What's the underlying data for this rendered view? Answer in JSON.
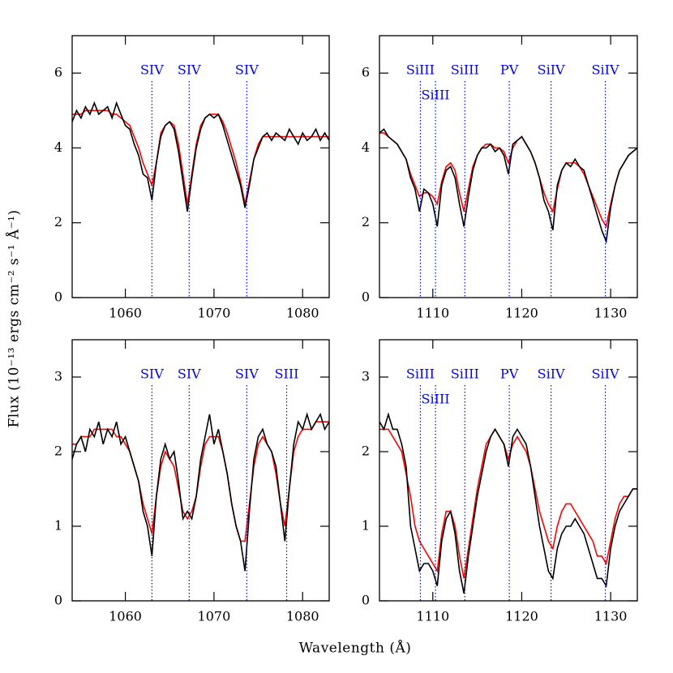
{
  "y_label": "Flux (10⁻¹³ ergs cm⁻² s⁻¹ Å⁻¹)",
  "x_label": "Wavelength (Å)",
  "chart_data": [
    {
      "type": "line",
      "x": [
        1054,
        1054.5,
        1055,
        1055.5,
        1056,
        1056.5,
        1057,
        1057.5,
        1058,
        1058.5,
        1059,
        1059.5,
        1060,
        1060.5,
        1061,
        1061.5,
        1062,
        1062.5,
        1063,
        1063.5,
        1064,
        1064.5,
        1065,
        1065.5,
        1066,
        1066.5,
        1067,
        1067.5,
        1068,
        1068.5,
        1069,
        1069.5,
        1070,
        1070.5,
        1071,
        1071.5,
        1072,
        1072.5,
        1073,
        1073.5,
        1074,
        1074.5,
        1075,
        1075.5,
        1076,
        1076.5,
        1077,
        1077.5,
        1078,
        1078.5,
        1079,
        1079.5,
        1080,
        1080.5,
        1081,
        1081.5,
        1082,
        1082.5,
        1083
      ],
      "xlim": [
        1054,
        1083
      ],
      "xticks": [
        1060,
        1070,
        1080
      ],
      "ylim": [
        0,
        7
      ],
      "yticks": [
        0,
        2,
        4,
        6
      ],
      "series": [
        {
          "color": "#ff0000",
          "values": [
            4.9,
            4.9,
            4.9,
            5.0,
            5.0,
            5.0,
            5.0,
            5.0,
            5.0,
            4.9,
            4.9,
            4.8,
            4.7,
            4.6,
            4.3,
            4.0,
            3.6,
            3.3,
            3.0,
            3.6,
            4.4,
            4.6,
            4.7,
            4.6,
            4.1,
            3.3,
            2.5,
            3.3,
            4.1,
            4.6,
            4.8,
            4.9,
            4.9,
            4.9,
            4.7,
            4.4,
            4.0,
            3.6,
            3.1,
            2.5,
            3.1,
            3.7,
            4.1,
            4.3,
            4.3,
            4.3,
            4.3,
            4.3,
            4.3,
            4.3,
            4.3,
            4.3,
            4.3,
            4.3,
            4.3,
            4.3,
            4.3,
            4.3,
            4.3
          ]
        },
        {
          "color": "#000000",
          "values": [
            4.7,
            5.0,
            4.8,
            5.1,
            4.9,
            5.2,
            4.9,
            5.0,
            5.1,
            4.8,
            5.2,
            4.9,
            4.6,
            4.5,
            4.1,
            3.8,
            3.3,
            3.2,
            2.6,
            3.6,
            4.3,
            4.6,
            4.7,
            4.5,
            3.9,
            3.1,
            2.3,
            3.2,
            4.0,
            4.5,
            4.8,
            4.9,
            4.8,
            4.9,
            4.6,
            4.2,
            3.8,
            3.4,
            3.0,
            2.4,
            3.0,
            3.7,
            4.0,
            4.3,
            4.4,
            4.2,
            4.4,
            4.3,
            4.2,
            4.5,
            4.3,
            4.1,
            4.4,
            4.2,
            4.3,
            4.5,
            4.2,
            4.4,
            4.2
          ]
        }
      ],
      "lines": [
        {
          "x": 1063.0,
          "label": "SIV"
        },
        {
          "x": 1067.2,
          "label": "SIV"
        },
        {
          "x": 1073.7,
          "label": "SIV"
        }
      ],
      "line_color": "#0000ff"
    },
    {
      "type": "line",
      "x": [
        1104,
        1104.5,
        1105,
        1105.5,
        1106,
        1106.5,
        1107,
        1107.5,
        1108,
        1108.5,
        1109,
        1109.5,
        1110,
        1110.5,
        1111,
        1111.5,
        1112,
        1112.5,
        1113,
        1113.5,
        1114,
        1114.5,
        1115,
        1115.5,
        1116,
        1116.5,
        1117,
        1117.5,
        1118,
        1118.5,
        1119,
        1119.5,
        1120,
        1120.5,
        1121,
        1121.5,
        1122,
        1122.5,
        1123,
        1123.5,
        1124,
        1124.5,
        1125,
        1125.5,
        1126,
        1126.5,
        1127,
        1127.5,
        1128,
        1128.5,
        1129,
        1129.5,
        1130,
        1130.5,
        1131,
        1131.5,
        1132,
        1132.5,
        1133
      ],
      "xlim": [
        1104,
        1133
      ],
      "xticks": [
        1110,
        1120,
        1130
      ],
      "ylim": [
        0,
        7
      ],
      "yticks": [
        0,
        2,
        4,
        6
      ],
      "series": [
        {
          "color": "#ff0000",
          "values": [
            4.4,
            4.4,
            4.3,
            4.2,
            4.1,
            3.9,
            3.7,
            3.3,
            3.0,
            2.7,
            2.8,
            2.8,
            2.7,
            2.5,
            3.1,
            3.5,
            3.6,
            3.4,
            2.8,
            2.3,
            2.9,
            3.5,
            3.8,
            4.0,
            4.1,
            4.1,
            4.0,
            4.0,
            3.9,
            3.6,
            4.0,
            4.2,
            4.3,
            4.1,
            3.9,
            3.6,
            3.2,
            2.8,
            2.5,
            2.3,
            2.9,
            3.4,
            3.6,
            3.6,
            3.6,
            3.5,
            3.3,
            3.0,
            2.7,
            2.4,
            2.1,
            1.9,
            2.5,
            3.0,
            3.4,
            3.6,
            3.8,
            3.9,
            4.0
          ]
        },
        {
          "color": "#000000",
          "values": [
            4.4,
            4.5,
            4.3,
            4.2,
            4.1,
            3.9,
            3.7,
            3.2,
            2.9,
            2.3,
            2.9,
            2.8,
            2.5,
            1.9,
            3.0,
            3.4,
            3.5,
            3.2,
            2.5,
            1.9,
            2.7,
            3.4,
            3.8,
            4.0,
            4.0,
            4.1,
            3.9,
            4.0,
            3.8,
            3.3,
            4.1,
            4.2,
            4.3,
            4.1,
            3.9,
            3.6,
            3.2,
            2.6,
            2.3,
            1.8,
            3.0,
            3.4,
            3.6,
            3.5,
            3.7,
            3.5,
            3.4,
            3.0,
            2.6,
            2.2,
            1.8,
            1.5,
            2.4,
            3.0,
            3.4,
            3.6,
            3.8,
            3.9,
            4.0
          ]
        }
      ],
      "lines": [
        {
          "x": 1108.6,
          "label": "SiIII"
        },
        {
          "x": 1110.3,
          "label": "SiIII"
        },
        {
          "x": 1113.6,
          "label": "SiIII"
        },
        {
          "x": 1118.6,
          "label": "PV"
        },
        {
          "x": 1123.3,
          "label": "SiIV"
        },
        {
          "x": 1129.4,
          "label": "SiIV"
        }
      ],
      "line_color": "#0000ff"
    },
    {
      "type": "line",
      "x": [
        1054,
        1054.5,
        1055,
        1055.5,
        1056,
        1056.5,
        1057,
        1057.5,
        1058,
        1058.5,
        1059,
        1059.5,
        1060,
        1060.5,
        1061,
        1061.5,
        1062,
        1062.5,
        1063,
        1063.5,
        1064,
        1064.5,
        1065,
        1065.5,
        1066,
        1066.5,
        1067,
        1067.5,
        1068,
        1068.5,
        1069,
        1069.5,
        1070,
        1070.5,
        1071,
        1071.5,
        1072,
        1072.5,
        1073,
        1073.5,
        1074,
        1074.5,
        1075,
        1075.5,
        1076,
        1076.5,
        1077,
        1077.5,
        1078,
        1078.5,
        1079,
        1079.5,
        1080,
        1080.5,
        1081,
        1081.5,
        1082,
        1082.5,
        1083
      ],
      "xlim": [
        1054,
        1083
      ],
      "xticks": [
        1060,
        1070,
        1080
      ],
      "ylim": [
        0,
        3.5
      ],
      "yticks": [
        0,
        1,
        2,
        3
      ],
      "series": [
        {
          "color": "#ff0000",
          "values": [
            2.1,
            2.1,
            2.2,
            2.2,
            2.2,
            2.3,
            2.3,
            2.3,
            2.3,
            2.3,
            2.2,
            2.2,
            2.1,
            2.0,
            1.8,
            1.6,
            1.3,
            1.1,
            0.9,
            1.4,
            1.8,
            2.0,
            1.9,
            1.8,
            1.5,
            1.2,
            1.1,
            1.2,
            1.4,
            1.8,
            2.1,
            2.2,
            2.2,
            2.2,
            2.0,
            1.7,
            1.3,
            1.0,
            0.8,
            0.8,
            1.3,
            1.8,
            2.1,
            2.2,
            2.1,
            2.0,
            1.7,
            1.3,
            1.0,
            1.5,
            2.0,
            2.2,
            2.3,
            2.3,
            2.3,
            2.4,
            2.4,
            2.4,
            2.4
          ]
        },
        {
          "color": "#000000",
          "values": [
            1.9,
            2.1,
            2.2,
            2.0,
            2.3,
            2.2,
            2.4,
            2.1,
            2.3,
            2.2,
            2.4,
            2.1,
            2.2,
            2.0,
            1.8,
            1.6,
            1.2,
            1.0,
            0.6,
            1.4,
            1.9,
            2.1,
            1.9,
            2.0,
            1.6,
            1.1,
            1.2,
            1.1,
            1.4,
            1.9,
            2.2,
            2.5,
            2.1,
            2.3,
            2.0,
            1.7,
            1.3,
            1.0,
            0.8,
            0.4,
            1.2,
            1.9,
            2.2,
            2.3,
            2.1,
            2.0,
            1.8,
            1.3,
            0.8,
            1.5,
            2.1,
            2.4,
            2.3,
            2.5,
            2.3,
            2.4,
            2.5,
            2.3,
            2.4
          ]
        }
      ],
      "lines": [
        {
          "x": 1063.0,
          "label": "SIV"
        },
        {
          "x": 1067.2,
          "label": "SIV"
        },
        {
          "x": 1073.7,
          "label": "SIV"
        },
        {
          "x": 1078.2,
          "label": "SIII"
        }
      ],
      "line_color": "#0000ff"
    },
    {
      "type": "line",
      "x": [
        1104,
        1104.5,
        1105,
        1105.5,
        1106,
        1106.5,
        1107,
        1107.5,
        1108,
        1108.5,
        1109,
        1109.5,
        1110,
        1110.5,
        1111,
        1111.5,
        1112,
        1112.5,
        1113,
        1113.5,
        1114,
        1114.5,
        1115,
        1115.5,
        1116,
        1116.5,
        1117,
        1117.5,
        1118,
        1118.5,
        1119,
        1119.5,
        1120,
        1120.5,
        1121,
        1121.5,
        1122,
        1122.5,
        1123,
        1123.5,
        1124,
        1124.5,
        1125,
        1125.5,
        1126,
        1126.5,
        1127,
        1127.5,
        1128,
        1128.5,
        1129,
        1129.5,
        1130,
        1130.5,
        1131,
        1131.5,
        1132,
        1132.5,
        1133
      ],
      "xlim": [
        1104,
        1133
      ],
      "xticks": [
        1110,
        1120,
        1130
      ],
      "ylim": [
        0,
        3.5
      ],
      "yticks": [
        0,
        1,
        2,
        3
      ],
      "series": [
        {
          "color": "#ff0000",
          "values": [
            2.3,
            2.3,
            2.3,
            2.2,
            2.1,
            2.0,
            1.7,
            1.4,
            1.0,
            0.8,
            0.7,
            0.6,
            0.5,
            0.4,
            0.9,
            1.2,
            1.2,
            1.0,
            0.6,
            0.3,
            0.7,
            1.1,
            1.5,
            1.8,
            2.1,
            2.2,
            2.3,
            2.2,
            2.1,
            1.9,
            2.1,
            2.2,
            2.1,
            2.0,
            1.8,
            1.5,
            1.2,
            1.0,
            0.8,
            0.7,
            1.0,
            1.2,
            1.3,
            1.3,
            1.2,
            1.1,
            1.0,
            0.9,
            0.8,
            0.6,
            0.6,
            0.5,
            0.8,
            1.1,
            1.3,
            1.4,
            1.4,
            1.5,
            1.5
          ]
        },
        {
          "color": "#000000",
          "values": [
            2.4,
            2.3,
            2.5,
            2.3,
            2.3,
            2.1,
            1.8,
            1.0,
            0.7,
            0.4,
            0.5,
            0.5,
            0.4,
            0.2,
            0.8,
            1.1,
            1.2,
            0.9,
            0.4,
            0.1,
            0.6,
            1.0,
            1.4,
            1.7,
            2.0,
            2.2,
            2.3,
            2.2,
            2.1,
            1.8,
            2.2,
            2.3,
            2.2,
            2.1,
            1.8,
            1.4,
            1.0,
            0.7,
            0.4,
            0.3,
            0.7,
            0.9,
            1.0,
            1.0,
            1.1,
            1.0,
            0.9,
            0.7,
            0.5,
            0.3,
            0.3,
            0.2,
            0.7,
            1.0,
            1.2,
            1.3,
            1.4,
            1.5,
            1.5
          ]
        }
      ],
      "lines": [
        {
          "x": 1108.6,
          "label": "SiIII"
        },
        {
          "x": 1110.3,
          "label": "SiIII"
        },
        {
          "x": 1113.6,
          "label": "SiIII"
        },
        {
          "x": 1118.6,
          "label": "PV"
        },
        {
          "x": 1123.3,
          "label": "SiIV"
        },
        {
          "x": 1129.4,
          "label": "SiIV"
        }
      ],
      "line_color": "#0000ff"
    }
  ]
}
